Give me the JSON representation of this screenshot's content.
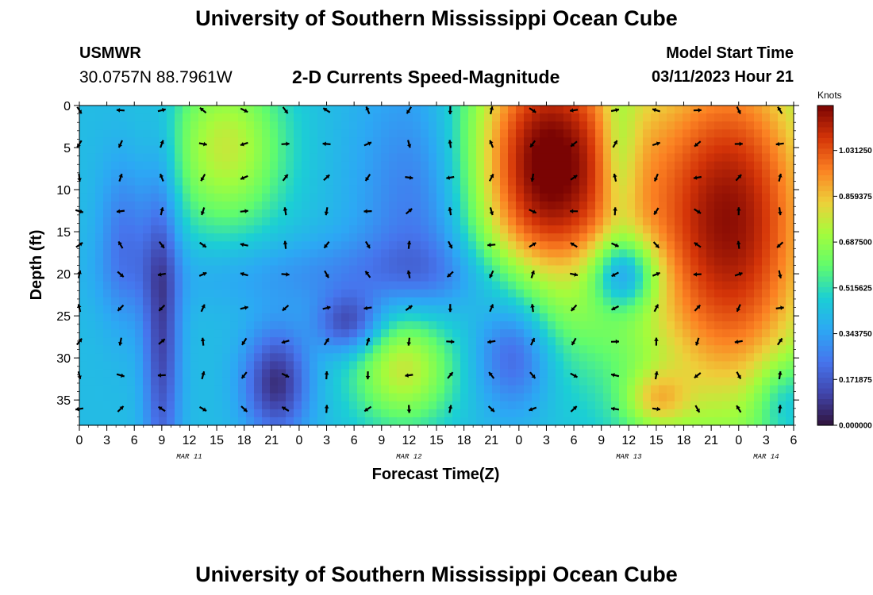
{
  "header": {
    "title": "University of Southern Mississippi Ocean Cube",
    "station": "USMWR",
    "coords": "30.0757N  88.7961W",
    "subtitle": "2-D Currents Speed-Magnitude",
    "model_start_label": "Model Start Time",
    "model_start_value": "03/11/2023 Hour 21"
  },
  "footer": {
    "title": "University of Southern Mississippi Ocean Cube"
  },
  "colors": {
    "low": "#30123b",
    "mid": "#a4fc3c",
    "high": "#7a0403",
    "arrow": "#000000"
  },
  "chart_data": {
    "type": "heatmap",
    "xlabel": "Forecast Time(Z)",
    "ylabel": "Depth (ft)",
    "xlim": [
      0,
      78
    ],
    "ylim": [
      38,
      0
    ],
    "x_ticks": [
      0,
      3,
      6,
      9,
      12,
      15,
      18,
      21,
      24,
      27,
      30,
      33,
      36,
      39,
      42,
      45,
      48,
      51,
      54,
      57,
      60,
      63,
      66,
      69,
      72,
      75,
      78
    ],
    "x_tick_labels": [
      "0",
      "3",
      "6",
      "9",
      "12",
      "15",
      "18",
      "21",
      "0",
      "3",
      "6",
      "9",
      "12",
      "15",
      "18",
      "21",
      "0",
      "3",
      "6",
      "9",
      "12",
      "15",
      "18",
      "21",
      "0",
      "3",
      "6"
    ],
    "y_ticks": [
      0,
      5,
      10,
      15,
      20,
      25,
      30,
      35
    ],
    "y_tick_labels": [
      "0",
      "5",
      "10",
      "15",
      "20",
      "25",
      "30",
      "35"
    ],
    "date_labels": [
      {
        "text": "MAR 11",
        "hour": 12
      },
      {
        "text": "MAR 12",
        "hour": 36
      },
      {
        "text": "MAR 13",
        "hour": 60
      },
      {
        "text": "MAR 14",
        "hour": 75
      }
    ],
    "colorbar": {
      "title": "Knots",
      "min": 0.0,
      "max": 1.2,
      "ticks": [
        0.0,
        0.171875,
        0.34375,
        0.515625,
        0.6875,
        0.859375,
        1.03125
      ],
      "tick_labels": [
        "0.000000",
        "0.171875",
        "0.343750",
        "0.515625",
        "0.687500",
        "0.859375",
        "1.031250"
      ]
    },
    "arrow_hours": [
      0,
      4.5,
      9,
      13.5,
      18,
      22.5,
      27,
      31.5,
      36,
      40.5,
      45,
      49.5,
      54,
      58.5,
      63,
      67.5,
      72,
      76.5
    ],
    "arrow_depths": [
      0,
      4,
      8,
      12,
      16,
      19.5,
      23.5,
      27.5,
      31.5,
      35.5
    ],
    "speed_features": [
      {
        "name": "low-col-a",
        "hour": 9,
        "depth": 26,
        "sx": 1.4,
        "sy": 14,
        "amp": -0.3
      },
      {
        "name": "low-col-b",
        "hour": 5,
        "depth": 16,
        "sx": 2,
        "sy": 7,
        "amp": -0.18
      },
      {
        "name": "low-band",
        "hour": 32,
        "depth": 20,
        "sx": 16,
        "sy": 3,
        "amp": -0.12
      },
      {
        "name": "low-blob-c",
        "hour": 21.5,
        "depth": 33,
        "sx": 2.5,
        "sy": 4.5,
        "amp": -0.35
      },
      {
        "name": "low-blob-d",
        "hour": 29.5,
        "depth": 26,
        "sx": 2.5,
        "sy": 2.5,
        "amp": -0.3
      },
      {
        "name": "low-blob-e",
        "hour": 38,
        "depth": 12,
        "sx": 5,
        "sy": 12,
        "amp": -0.22
      },
      {
        "name": "low-blob-f",
        "hour": 47.5,
        "depth": 29,
        "sx": 3,
        "sy": 5,
        "amp": -0.3
      },
      {
        "name": "low-blob-g",
        "hour": 59.5,
        "depth": 20,
        "sx": 2.5,
        "sy": 3,
        "amp": -0.38
      },
      {
        "name": "low-col-h",
        "hour": 59,
        "depth": 6,
        "sx": 1.5,
        "sy": 7,
        "amp": -0.2
      },
      {
        "name": "low-blob-i",
        "hour": 77,
        "depth": 35,
        "sx": 2.5,
        "sy": 3.5,
        "amp": -0.18
      },
      {
        "name": "high-blob-a",
        "hour": 16,
        "depth": 5,
        "sx": 4.5,
        "sy": 7,
        "amp": 0.35
      },
      {
        "name": "high-blob-b",
        "hour": 35.5,
        "depth": 31,
        "sx": 4,
        "sy": 5,
        "amp": 0.4
      },
      {
        "name": "high-blob-c",
        "hour": 51,
        "depth": 7,
        "sx": 6.5,
        "sy": 12,
        "amp": 0.8
      },
      {
        "name": "high-blob-d",
        "hour": 71,
        "depth": 14,
        "sx": 7.5,
        "sy": 17,
        "amp": 0.75
      },
      {
        "name": "high-blob-e",
        "hour": 63,
        "depth": 35,
        "sx": 2.5,
        "sy": 2.5,
        "amp": 0.25
      }
    ],
    "speed_base": 0.42
  }
}
